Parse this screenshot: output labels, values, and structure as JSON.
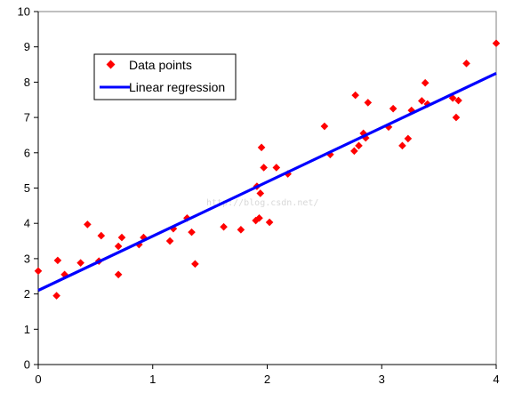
{
  "chart_data": {
    "type": "scatter",
    "title": "",
    "xlabel": "",
    "ylabel": "",
    "xlim": [
      0,
      4
    ],
    "ylim": [
      0,
      10
    ],
    "x_ticks": [
      "0",
      "1",
      "2",
      "3",
      "4"
    ],
    "y_ticks": [
      "0",
      "1",
      "2",
      "3",
      "4",
      "5",
      "6",
      "7",
      "8",
      "9",
      "10"
    ],
    "grid": false,
    "legend_position": "top-left",
    "legend": {
      "points_label": "Data points",
      "line_label": "Linear regression"
    },
    "colors": {
      "points": "#ff0000",
      "line": "#0000ff"
    },
    "watermark_text": "http://blog.csdn.net/",
    "series": [
      {
        "name": "Data points",
        "type": "scatter",
        "points": [
          [
            0.0,
            2.65
          ],
          [
            0.16,
            1.95
          ],
          [
            0.17,
            2.95
          ],
          [
            0.23,
            2.55
          ],
          [
            0.37,
            2.88
          ],
          [
            0.43,
            3.97
          ],
          [
            0.53,
            2.93
          ],
          [
            0.55,
            3.65
          ],
          [
            0.7,
            2.55
          ],
          [
            0.7,
            3.35
          ],
          [
            0.73,
            3.6
          ],
          [
            0.88,
            3.4
          ],
          [
            0.92,
            3.6
          ],
          [
            1.15,
            3.5
          ],
          [
            1.18,
            3.85
          ],
          [
            1.3,
            4.15
          ],
          [
            1.34,
            3.75
          ],
          [
            1.37,
            2.85
          ],
          [
            1.62,
            3.9
          ],
          [
            1.77,
            3.82
          ],
          [
            1.9,
            4.08
          ],
          [
            1.91,
            5.05
          ],
          [
            1.93,
            4.15
          ],
          [
            1.94,
            4.85
          ],
          [
            1.95,
            6.15
          ],
          [
            1.97,
            5.58
          ],
          [
            2.02,
            4.03
          ],
          [
            2.08,
            5.58
          ],
          [
            2.18,
            5.4
          ],
          [
            2.5,
            6.75
          ],
          [
            2.55,
            5.95
          ],
          [
            2.76,
            6.05
          ],
          [
            2.77,
            7.63
          ],
          [
            2.8,
            6.2
          ],
          [
            2.84,
            6.55
          ],
          [
            2.86,
            6.42
          ],
          [
            2.88,
            7.42
          ],
          [
            3.06,
            6.73
          ],
          [
            3.1,
            7.25
          ],
          [
            3.18,
            6.2
          ],
          [
            3.23,
            6.4
          ],
          [
            3.26,
            7.2
          ],
          [
            3.35,
            7.47
          ],
          [
            3.38,
            7.98
          ],
          [
            3.4,
            7.38
          ],
          [
            3.62,
            7.55
          ],
          [
            3.65,
            7.0
          ],
          [
            3.67,
            7.48
          ],
          [
            3.74,
            8.53
          ],
          [
            4.0,
            9.1
          ]
        ]
      },
      {
        "name": "Linear regression",
        "type": "line",
        "points": [
          [
            0,
            2.1
          ],
          [
            4,
            8.25
          ]
        ]
      }
    ]
  }
}
